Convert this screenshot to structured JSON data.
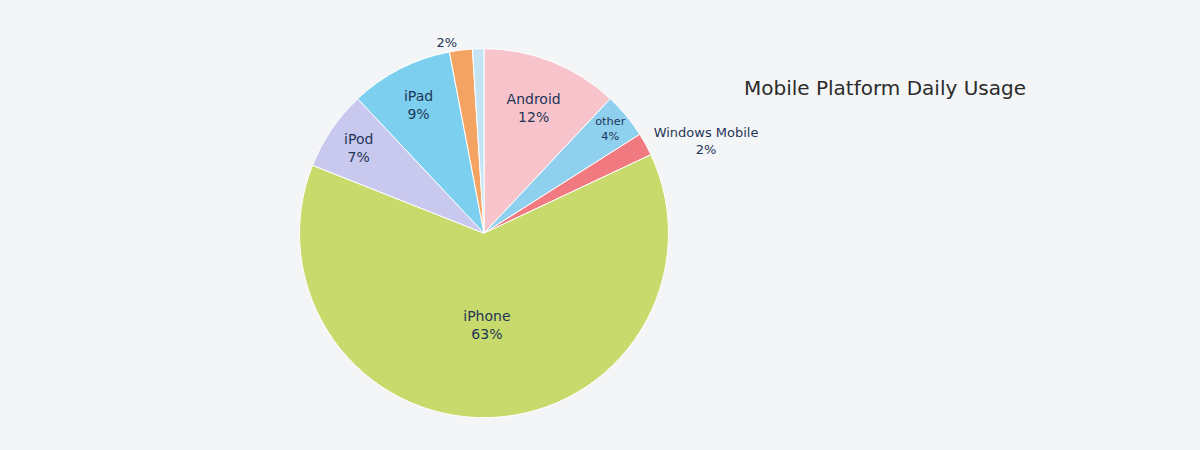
{
  "chart_data": {
    "type": "pie",
    "title": "Mobile Platform Daily Usage",
    "categories": [
      "Android",
      "other",
      "Windows Mobile",
      "iPhone",
      "iPod",
      "iPad",
      null,
      null
    ],
    "values": [
      12,
      4,
      2,
      63,
      7,
      9,
      2,
      1
    ],
    "value_labels": [
      "12%",
      "4%",
      "2%",
      "63%",
      "7%",
      "9%",
      "2%",
      null
    ],
    "colors": [
      "#f7c4cc",
      "#8fd0ef",
      "#f07a80",
      "#c9da6c",
      "#c9c8ee",
      "#7ccfee",
      "#f4a462",
      "#c4e4f4"
    ],
    "data_labels": true
  }
}
